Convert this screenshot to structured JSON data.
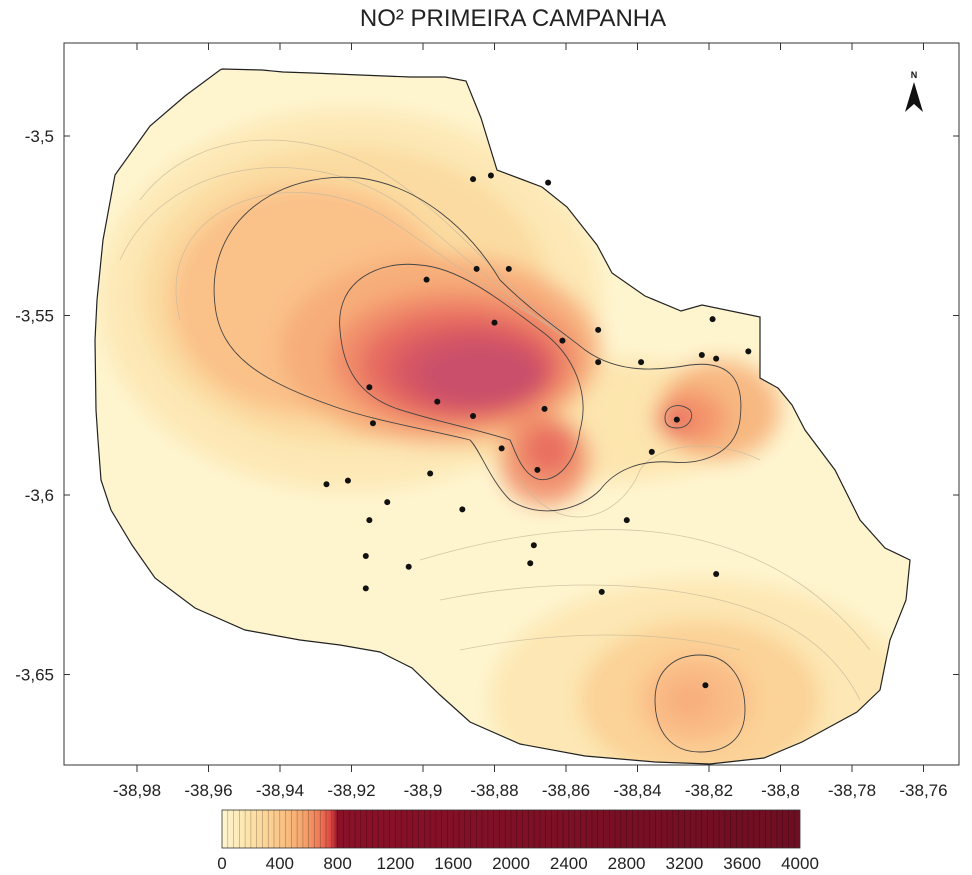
{
  "title": "NO² PRIMEIRA CAMPANHA",
  "north_label": "N",
  "y_axis": {
    "ticks": [
      {
        "value": -3.5,
        "label": "-3,5"
      },
      {
        "value": -3.55,
        "label": "-3,55"
      },
      {
        "value": -3.6,
        "label": "-3,6"
      },
      {
        "value": -3.65,
        "label": "-3,65"
      }
    ]
  },
  "x_axis": {
    "ticks": [
      {
        "value": -38.98,
        "label": "-38,98"
      },
      {
        "value": -38.96,
        "label": "-38,96"
      },
      {
        "value": -38.94,
        "label": "-38,94"
      },
      {
        "value": -38.92,
        "label": "-38,92"
      },
      {
        "value": -38.9,
        "label": "-38,9"
      },
      {
        "value": -38.88,
        "label": "-38,88"
      },
      {
        "value": -38.86,
        "label": "-38,86"
      },
      {
        "value": -38.84,
        "label": "-38,84"
      },
      {
        "value": -38.82,
        "label": "-38,82"
      },
      {
        "value": -38.8,
        "label": "-38,8"
      },
      {
        "value": -38.78,
        "label": "-38,78"
      },
      {
        "value": -38.76,
        "label": "-38,76"
      }
    ]
  },
  "colorbar": {
    "min": 0,
    "max": 4000,
    "labels": [
      "0",
      "400",
      "800",
      "1200",
      "1600",
      "2000",
      "2400",
      "2800",
      "3200",
      "3600",
      "4000"
    ],
    "colors": [
      "#fef5cf",
      "#fde2a8",
      "#fbc687",
      "#f5a56d",
      "#ee7755",
      "#d94440",
      "#b32036",
      "#8a1128",
      "#6e0e22"
    ]
  },
  "sample_points": [
    {
      "lon": -38.886,
      "lat": -3.512
    },
    {
      "lon": -38.881,
      "lat": -3.511
    },
    {
      "lon": -38.865,
      "lat": -3.513
    },
    {
      "lon": -38.885,
      "lat": -3.537
    },
    {
      "lon": -38.876,
      "lat": -3.537
    },
    {
      "lon": -38.899,
      "lat": -3.54
    },
    {
      "lon": -38.88,
      "lat": -3.552
    },
    {
      "lon": -38.861,
      "lat": -3.557
    },
    {
      "lon": -38.851,
      "lat": -3.554
    },
    {
      "lon": -38.851,
      "lat": -3.563
    },
    {
      "lon": -38.839,
      "lat": -3.563
    },
    {
      "lon": -38.819,
      "lat": -3.551
    },
    {
      "lon": -38.822,
      "lat": -3.561
    },
    {
      "lon": -38.818,
      "lat": -3.562
    },
    {
      "lon": -38.809,
      "lat": -3.56
    },
    {
      "lon": -38.915,
      "lat": -3.57
    },
    {
      "lon": -38.896,
      "lat": -3.574
    },
    {
      "lon": -38.886,
      "lat": -3.578
    },
    {
      "lon": -38.866,
      "lat": -3.576
    },
    {
      "lon": -38.829,
      "lat": -3.579
    },
    {
      "lon": -38.914,
      "lat": -3.58
    },
    {
      "lon": -38.878,
      "lat": -3.587
    },
    {
      "lon": -38.836,
      "lat": -3.588
    },
    {
      "lon": -38.868,
      "lat": -3.593
    },
    {
      "lon": -38.898,
      "lat": -3.594
    },
    {
      "lon": -38.927,
      "lat": -3.597
    },
    {
      "lon": -38.921,
      "lat": -3.596
    },
    {
      "lon": -38.91,
      "lat": -3.602
    },
    {
      "lon": -38.889,
      "lat": -3.604
    },
    {
      "lon": -38.915,
      "lat": -3.607
    },
    {
      "lon": -38.843,
      "lat": -3.607
    },
    {
      "lon": -38.869,
      "lat": -3.614
    },
    {
      "lon": -38.916,
      "lat": -3.617
    },
    {
      "lon": -38.87,
      "lat": -3.619
    },
    {
      "lon": -38.904,
      "lat": -3.62
    },
    {
      "lon": -38.818,
      "lat": -3.622
    },
    {
      "lon": -38.916,
      "lat": -3.626
    },
    {
      "lon": -38.85,
      "lat": -3.627
    },
    {
      "lon": -38.821,
      "lat": -3.653
    }
  ]
}
